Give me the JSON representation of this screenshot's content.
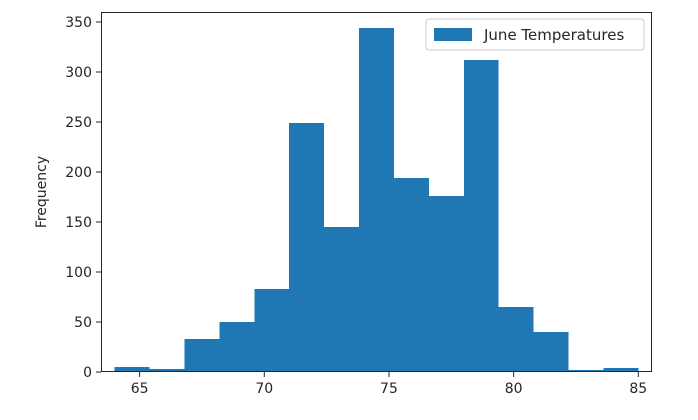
{
  "chart_data": {
    "type": "bar",
    "title": "",
    "xlabel": "",
    "ylabel": "Frequency",
    "xlim": [
      63.45,
      85.55
    ],
    "ylim": [
      0,
      360
    ],
    "xticks": [
      65,
      70,
      75,
      80,
      85
    ],
    "yticks": [
      0,
      50,
      100,
      150,
      200,
      250,
      300,
      350
    ],
    "grid": false,
    "legend_position": "top-right",
    "bar_color": "#1f77b4",
    "bin_edges": [
      64.0,
      65.4,
      66.8,
      68.2,
      69.6,
      71.0,
      72.4,
      73.8,
      75.2,
      76.6,
      78.0,
      79.4,
      80.8,
      82.2,
      83.6,
      85.0
    ],
    "series": [
      {
        "name": "June Temperatures",
        "values": [
          5,
          3,
          33,
          50,
          83,
          249,
          145,
          344,
          194,
          176,
          312,
          65,
          40,
          2,
          4
        ]
      }
    ]
  }
}
